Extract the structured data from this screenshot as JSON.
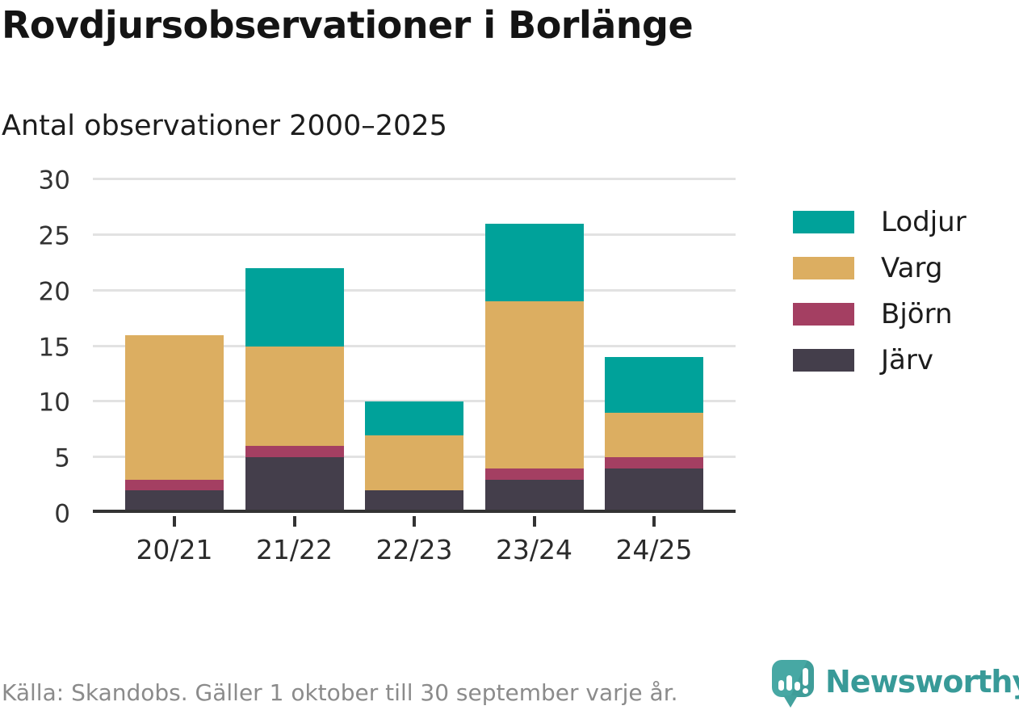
{
  "title": "Rovdjursobservationer i Borlänge",
  "subtitle": "Antal observationer 2000–2025",
  "footer": {
    "source": "Källa: Skandobs. Gäller 1 oktober till 30 september varje år."
  },
  "branding": {
    "name": "Newsworthy",
    "logo_icon": "speech-bubble-bar-chart-icon",
    "text_color": "#389a98",
    "bubble_color": "#45a6a2"
  },
  "colors": {
    "axis": "#333333",
    "gridline": "#e2e2e2",
    "tick_label": "#333333",
    "title_text": "#141414",
    "footer_text": "#8b8b8b"
  },
  "chart_data": {
    "type": "bar",
    "stacked": true,
    "title": "Rovdjursobservationer i Borlänge",
    "subtitle": "Antal observationer 2000–2025",
    "categories": [
      "20/21",
      "21/22",
      "22/23",
      "23/24",
      "24/25"
    ],
    "series": [
      {
        "name": "Lodjur",
        "color": "#00a29a",
        "values": [
          0,
          7,
          3,
          7,
          5
        ]
      },
      {
        "name": "Varg",
        "color": "#dcae61",
        "values": [
          13,
          9,
          5,
          15,
          4
        ]
      },
      {
        "name": "Björn",
        "color": "#a43f62",
        "values": [
          1,
          1,
          0,
          1,
          1
        ]
      },
      {
        "name": "Järv",
        "color": "#443e4b",
        "values": [
          2,
          5,
          2,
          3,
          4
        ]
      }
    ],
    "stack_order_bottom_to_top": [
      "Järv",
      "Björn",
      "Varg",
      "Lodjur"
    ],
    "totals": [
      16,
      22,
      10,
      26,
      14
    ],
    "ylim": [
      0,
      30
    ],
    "yticks": [
      0,
      5,
      10,
      15,
      20,
      25,
      30
    ],
    "xlabel": "",
    "ylabel": "",
    "grid": "horizontal",
    "legend_position": "right"
  }
}
